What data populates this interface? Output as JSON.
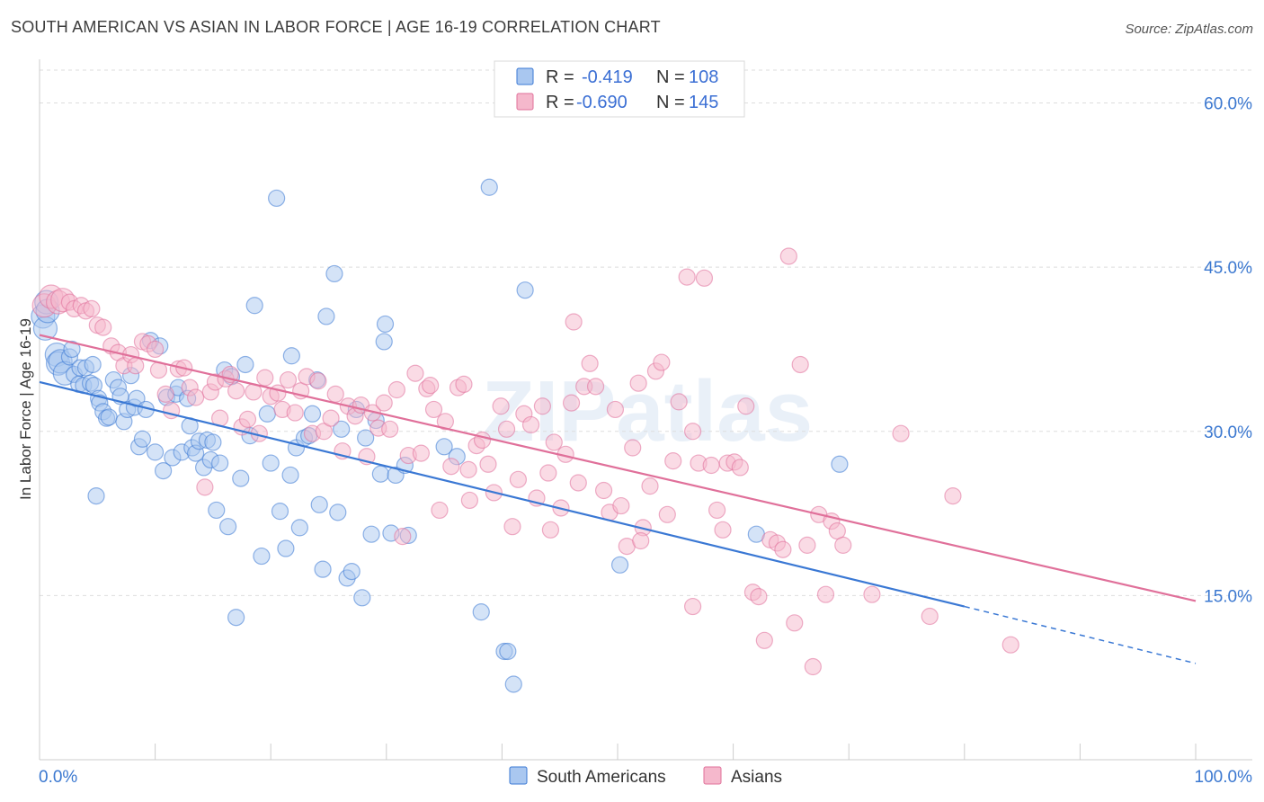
{
  "header": {
    "title": "SOUTH AMERICAN VS ASIAN IN LABOR FORCE | AGE 16-19 CORRELATION CHART",
    "source": "Source: ZipAtlas.com"
  },
  "watermark": "ZIPatlas",
  "colors": {
    "blue": "#3a78d4",
    "blue_fill": "#a9c7f0",
    "pink": "#e0709a",
    "pink_fill": "#f5b8cc",
    "grid": "#dddddd",
    "axis_text": "#3b78d0"
  },
  "legend": {
    "rows": [
      {
        "r_label": "R =",
        "r_value": "-0.419",
        "n_label": "N =",
        "n_value": "108",
        "series": "blue"
      },
      {
        "r_label": "R =",
        "r_value": "-0.690",
        "n_label": "N =",
        "n_value": "145",
        "series": "pink"
      }
    ]
  },
  "bottom_legend": [
    {
      "label": "South Americans",
      "series": "blue"
    },
    {
      "label": "Asians",
      "series": "pink"
    }
  ],
  "chart_data": {
    "type": "scatter",
    "title": "SOUTH AMERICAN VS ASIAN IN LABOR FORCE | AGE 16-19 CORRELATION CHART",
    "xlabel": "",
    "ylabel": "In Labor Force | Age 16-19",
    "xlim": [
      0,
      100
    ],
    "ylim": [
      0,
      63
    ],
    "x_tick_labels": [
      "0.0%",
      "100.0%"
    ],
    "y_ticks": [
      15,
      30,
      45,
      60
    ],
    "y_tick_labels": [
      "15.0%",
      "30.0%",
      "45.0%",
      "60.0%"
    ],
    "series": [
      {
        "name": "South Americans",
        "color": "blue",
        "R": -0.419,
        "N": 108,
        "trend": {
          "x0": 0,
          "y0": 34.5,
          "x1": 80,
          "y1": 14.0,
          "dash_to_x": 100,
          "dash_to_y": 8.8
        },
        "points": [
          [
            0.3,
            40.5
          ],
          [
            0.5,
            39.4
          ],
          [
            0.6,
            41.8
          ],
          [
            0.7,
            41.0
          ],
          [
            1.5,
            37.0
          ],
          [
            1.6,
            36.2
          ],
          [
            1.8,
            36.4
          ],
          [
            2.2,
            35.3
          ],
          [
            2.6,
            36.8
          ],
          [
            2.8,
            37.5
          ],
          [
            3.0,
            35.2
          ],
          [
            3.4,
            34.3
          ],
          [
            3.5,
            35.8
          ],
          [
            3.8,
            34.2
          ],
          [
            4.0,
            35.8
          ],
          [
            4.4,
            34.4
          ],
          [
            4.6,
            36.1
          ],
          [
            4.7,
            34.2
          ],
          [
            4.9,
            24.1
          ],
          [
            5.1,
            33.0
          ],
          [
            5.2,
            32.6
          ],
          [
            5.5,
            31.8
          ],
          [
            5.8,
            31.2
          ],
          [
            6.0,
            31.3
          ],
          [
            6.4,
            34.7
          ],
          [
            6.8,
            34.0
          ],
          [
            7.0,
            33.2
          ],
          [
            7.3,
            30.9
          ],
          [
            7.6,
            32.0
          ],
          [
            7.9,
            35.1
          ],
          [
            8.2,
            32.2
          ],
          [
            8.4,
            33.0
          ],
          [
            8.6,
            28.6
          ],
          [
            8.9,
            29.3
          ],
          [
            9.2,
            32.0
          ],
          [
            9.6,
            38.3
          ],
          [
            10.0,
            28.1
          ],
          [
            10.4,
            37.8
          ],
          [
            10.7,
            26.4
          ],
          [
            11.0,
            33.1
          ],
          [
            11.5,
            27.6
          ],
          [
            11.8,
            33.4
          ],
          [
            12.0,
            34.0
          ],
          [
            12.3,
            28.1
          ],
          [
            12.8,
            33.0
          ],
          [
            13.0,
            30.5
          ],
          [
            13.2,
            28.5
          ],
          [
            13.5,
            28.0
          ],
          [
            13.8,
            29.1
          ],
          [
            14.2,
            26.7
          ],
          [
            14.5,
            29.2
          ],
          [
            14.8,
            27.4
          ],
          [
            15.0,
            29.0
          ],
          [
            15.3,
            22.8
          ],
          [
            15.6,
            27.1
          ],
          [
            16.0,
            35.6
          ],
          [
            16.3,
            21.3
          ],
          [
            16.6,
            35.0
          ],
          [
            17.0,
            13.0
          ],
          [
            17.4,
            25.7
          ],
          [
            17.8,
            36.1
          ],
          [
            18.2,
            29.6
          ],
          [
            18.6,
            41.5
          ],
          [
            19.2,
            18.6
          ],
          [
            19.7,
            31.6
          ],
          [
            20.0,
            27.1
          ],
          [
            20.5,
            51.3
          ],
          [
            20.8,
            22.7
          ],
          [
            21.3,
            19.3
          ],
          [
            21.8,
            36.9
          ],
          [
            22.2,
            28.5
          ],
          [
            22.5,
            21.2
          ],
          [
            22.9,
            29.4
          ],
          [
            23.3,
            29.6
          ],
          [
            23.6,
            31.6
          ],
          [
            24.0,
            34.7
          ],
          [
            24.2,
            23.3
          ],
          [
            24.5,
            17.4
          ],
          [
            24.8,
            40.5
          ],
          [
            25.5,
            44.4
          ],
          [
            25.8,
            22.6
          ],
          [
            26.1,
            30.2
          ],
          [
            26.6,
            16.6
          ],
          [
            27.0,
            17.2
          ],
          [
            27.4,
            32.0
          ],
          [
            27.9,
            14.8
          ],
          [
            28.2,
            29.4
          ],
          [
            28.7,
            20.6
          ],
          [
            29.1,
            31.0
          ],
          [
            29.5,
            26.1
          ],
          [
            29.8,
            38.2
          ],
          [
            29.9,
            39.8
          ],
          [
            30.4,
            20.7
          ],
          [
            30.8,
            26.0
          ],
          [
            31.6,
            26.9
          ],
          [
            31.9,
            20.5
          ],
          [
            35.0,
            28.6
          ],
          [
            36.1,
            27.7
          ],
          [
            38.2,
            13.5
          ],
          [
            38.9,
            52.3
          ],
          [
            40.2,
            9.9
          ],
          [
            40.5,
            9.9
          ],
          [
            41.0,
            6.9
          ],
          [
            42.0,
            42.9
          ],
          [
            50.2,
            17.8
          ],
          [
            62.0,
            20.6
          ],
          [
            69.2,
            27.0
          ],
          [
            21.7,
            26.0
          ]
        ]
      },
      {
        "name": "Asians",
        "color": "pink",
        "R": -0.69,
        "N": 145,
        "trend": {
          "x0": 0,
          "y0": 38.8,
          "x1": 100,
          "y1": 14.5
        },
        "points": [
          [
            0.4,
            41.5
          ],
          [
            1.0,
            42.3
          ],
          [
            1.6,
            41.8
          ],
          [
            2.0,
            42.0
          ],
          [
            2.6,
            41.8
          ],
          [
            3.0,
            41.2
          ],
          [
            3.6,
            41.5
          ],
          [
            4.0,
            41.0
          ],
          [
            4.5,
            41.2
          ],
          [
            5.0,
            39.7
          ],
          [
            5.5,
            39.5
          ],
          [
            6.2,
            37.8
          ],
          [
            6.8,
            37.2
          ],
          [
            7.3,
            36.0
          ],
          [
            7.9,
            37.0
          ],
          [
            8.3,
            36.0
          ],
          [
            8.9,
            38.2
          ],
          [
            9.4,
            38.0
          ],
          [
            10.0,
            37.5
          ],
          [
            10.3,
            35.6
          ],
          [
            10.9,
            33.4
          ],
          [
            11.4,
            31.9
          ],
          [
            12.0,
            35.7
          ],
          [
            12.5,
            35.8
          ],
          [
            13.0,
            34.0
          ],
          [
            13.5,
            33.1
          ],
          [
            14.3,
            24.9
          ],
          [
            14.8,
            33.6
          ],
          [
            15.2,
            34.5
          ],
          [
            15.6,
            31.2
          ],
          [
            16.1,
            34.8
          ],
          [
            16.5,
            35.2
          ],
          [
            17.0,
            33.7
          ],
          [
            17.5,
            30.4
          ],
          [
            18.0,
            31.1
          ],
          [
            18.5,
            33.6
          ],
          [
            19.0,
            29.8
          ],
          [
            19.5,
            34.9
          ],
          [
            20.0,
            33.2
          ],
          [
            20.6,
            33.5
          ],
          [
            21.0,
            32.0
          ],
          [
            21.5,
            34.7
          ],
          [
            22.1,
            31.7
          ],
          [
            22.6,
            33.7
          ],
          [
            23.1,
            35.0
          ],
          [
            23.6,
            29.8
          ],
          [
            24.1,
            34.6
          ],
          [
            24.6,
            30.0
          ],
          [
            25.2,
            31.2
          ],
          [
            25.6,
            33.4
          ],
          [
            26.2,
            28.2
          ],
          [
            26.7,
            32.3
          ],
          [
            27.3,
            31.4
          ],
          [
            27.8,
            32.4
          ],
          [
            28.3,
            27.7
          ],
          [
            28.8,
            31.7
          ],
          [
            29.3,
            30.3
          ],
          [
            29.8,
            32.6
          ],
          [
            30.3,
            30.2
          ],
          [
            30.9,
            33.8
          ],
          [
            31.4,
            20.4
          ],
          [
            31.9,
            27.8
          ],
          [
            32.5,
            35.3
          ],
          [
            33.0,
            28.0
          ],
          [
            33.5,
            33.9
          ],
          [
            34.1,
            32.0
          ],
          [
            34.6,
            22.8
          ],
          [
            35.1,
            30.9
          ],
          [
            35.6,
            26.8
          ],
          [
            36.2,
            34.0
          ],
          [
            36.7,
            34.3
          ],
          [
            37.2,
            23.7
          ],
          [
            37.8,
            28.7
          ],
          [
            38.3,
            29.2
          ],
          [
            38.8,
            27.0
          ],
          [
            39.3,
            24.4
          ],
          [
            39.9,
            32.3
          ],
          [
            40.4,
            30.2
          ],
          [
            40.9,
            21.3
          ],
          [
            41.4,
            25.6
          ],
          [
            41.9,
            31.6
          ],
          [
            42.5,
            30.6
          ],
          [
            43.0,
            23.9
          ],
          [
            43.5,
            32.3
          ],
          [
            44.0,
            26.2
          ],
          [
            44.5,
            29.0
          ],
          [
            45.1,
            23.0
          ],
          [
            45.5,
            27.9
          ],
          [
            46.0,
            32.6
          ],
          [
            46.6,
            25.3
          ],
          [
            47.1,
            34.1
          ],
          [
            47.6,
            36.2
          ],
          [
            48.1,
            34.1
          ],
          [
            48.8,
            24.6
          ],
          [
            49.3,
            22.6
          ],
          [
            49.8,
            32.0
          ],
          [
            50.3,
            23.2
          ],
          [
            50.8,
            19.5
          ],
          [
            51.3,
            28.5
          ],
          [
            51.8,
            34.4
          ],
          [
            52.2,
            21.2
          ],
          [
            52.8,
            25.0
          ],
          [
            53.3,
            35.5
          ],
          [
            53.8,
            36.3
          ],
          [
            54.3,
            22.4
          ],
          [
            54.8,
            27.3
          ],
          [
            55.3,
            32.7
          ],
          [
            56.0,
            44.1
          ],
          [
            56.5,
            30.0
          ],
          [
            57.0,
            27.1
          ],
          [
            57.5,
            44.0
          ],
          [
            58.1,
            26.9
          ],
          [
            58.6,
            22.8
          ],
          [
            59.1,
            21.0
          ],
          [
            59.5,
            27.1
          ],
          [
            60.1,
            27.2
          ],
          [
            60.6,
            26.7
          ],
          [
            61.1,
            32.3
          ],
          [
            61.7,
            15.3
          ],
          [
            62.2,
            14.9
          ],
          [
            62.7,
            10.9
          ],
          [
            63.2,
            20.1
          ],
          [
            63.8,
            19.8
          ],
          [
            64.3,
            19.2
          ],
          [
            64.8,
            46.0
          ],
          [
            65.3,
            12.5
          ],
          [
            65.8,
            36.1
          ],
          [
            66.4,
            19.6
          ],
          [
            66.9,
            8.5
          ],
          [
            67.4,
            22.4
          ],
          [
            68.0,
            15.1
          ],
          [
            68.5,
            21.8
          ],
          [
            69.0,
            20.9
          ],
          [
            69.5,
            19.6
          ],
          [
            72.0,
            15.1
          ],
          [
            74.5,
            29.8
          ],
          [
            77.0,
            13.1
          ],
          [
            79.0,
            24.1
          ],
          [
            84.0,
            10.5
          ],
          [
            56.5,
            14.0
          ],
          [
            52.0,
            20.0
          ],
          [
            46.2,
            40.0
          ],
          [
            33.8,
            34.2
          ],
          [
            37.1,
            26.5
          ],
          [
            44.2,
            21.0
          ]
        ]
      }
    ]
  }
}
